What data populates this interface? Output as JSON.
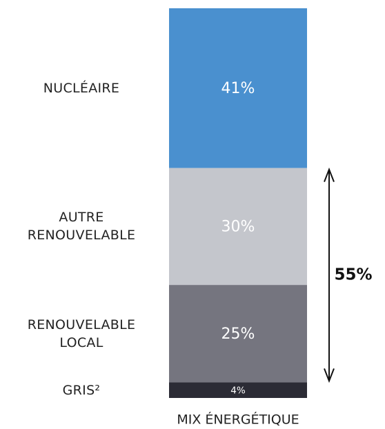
{
  "chart_data": {
    "type": "stacked_bar",
    "categories": [
      "MIX ÉNERGÉTIQUE"
    ],
    "series": [
      {
        "name": "NUCLÉAIRE",
        "color": "#4a90cf",
        "values": [
          41
        ],
        "value_labels": [
          "41%"
        ]
      },
      {
        "name": "AUTRE RENOUVELABLE",
        "color": "#c4c6cc",
        "values": [
          30
        ],
        "value_labels": [
          "30%"
        ]
      },
      {
        "name": "RENOUVELABLE LOCAL",
        "color": "#75757f",
        "values": [
          25
        ],
        "value_labels": [
          "25%"
        ]
      },
      {
        "name": "GRIS²",
        "color": "#2b2b35",
        "values": [
          4
        ],
        "value_labels": [
          "4%"
        ]
      }
    ],
    "ylim": [
      0,
      100
    ],
    "annotation": "55%"
  }
}
